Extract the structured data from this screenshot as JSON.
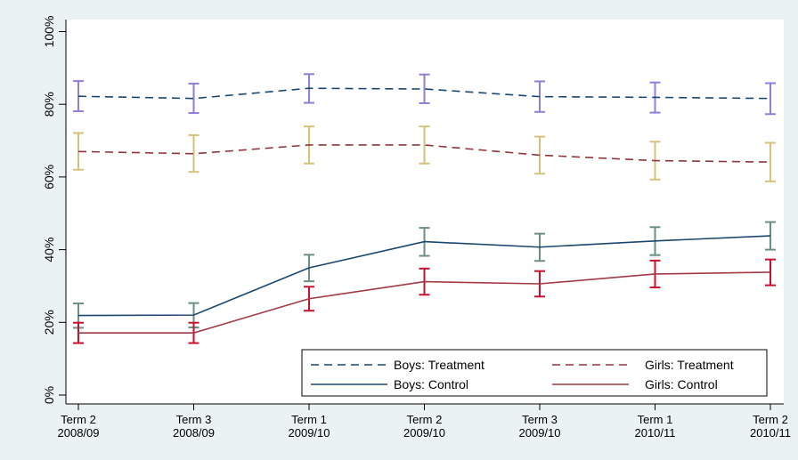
{
  "chart_data": {
    "type": "line",
    "title": "",
    "xlabel": "",
    "ylabel": "",
    "ylim": [
      0,
      100
    ],
    "y_ticks": [
      "0%",
      "20%",
      "40%",
      "60%",
      "80%",
      "100%"
    ],
    "y_tick_values": [
      0,
      20,
      40,
      60,
      80,
      100
    ],
    "categories": [
      [
        "Term 2",
        "2008/09"
      ],
      [
        "Term 3",
        "2008/09"
      ],
      [
        "Term 1",
        "2009/10"
      ],
      [
        "Term 2",
        "2009/10"
      ],
      [
        "Term 3",
        "2009/10"
      ],
      [
        "Term 1",
        "2010/11"
      ],
      [
        "Term 2",
        "2010/11"
      ]
    ],
    "grid": false,
    "legend_position": "bottom-right",
    "series": [
      {
        "name": "Boys: Treatment",
        "style": "dashed",
        "line_color": "#1a476f",
        "error_color": "#8f7fd6",
        "values": [
          82.2,
          81.6,
          84.4,
          84.2,
          82.1,
          81.9,
          81.6
        ],
        "lower": [
          78.1,
          77.6,
          80.4,
          80.3,
          77.9,
          77.7,
          77.3
        ],
        "upper": [
          86.4,
          85.7,
          88.3,
          88.2,
          86.3,
          86.0,
          85.8
        ]
      },
      {
        "name": "Girls: Treatment",
        "style": "dashed",
        "line_color": "#90353b",
        "error_color": "#d4c27a",
        "values": [
          67.0,
          66.4,
          68.8,
          68.8,
          66.0,
          64.5,
          64.1
        ],
        "lower": [
          62.0,
          61.4,
          63.7,
          63.7,
          60.9,
          59.3,
          58.8
        ],
        "upper": [
          72.1,
          71.5,
          73.9,
          73.9,
          71.1,
          69.7,
          69.4
        ]
      },
      {
        "name": "Boys: Control",
        "style": "solid",
        "line_color": "#1a476f",
        "error_color": "#6b8f80",
        "values": [
          21.9,
          22.0,
          35.0,
          42.2,
          40.7,
          42.4,
          43.8
        ],
        "lower": [
          18.5,
          18.6,
          31.3,
          38.3,
          36.9,
          38.5,
          40.0
        ],
        "upper": [
          25.2,
          25.3,
          38.6,
          46.0,
          44.4,
          46.2,
          47.6
        ]
      },
      {
        "name": "Girls: Control",
        "style": "solid",
        "line_color": "#a03a45",
        "error_color": "#c8102e",
        "values": [
          17.1,
          17.1,
          26.5,
          31.2,
          30.6,
          33.3,
          33.8
        ],
        "lower": [
          14.3,
          14.3,
          23.2,
          27.6,
          27.1,
          29.6,
          30.2
        ],
        "upper": [
          19.9,
          19.9,
          29.8,
          34.8,
          34.1,
          37.0,
          37.3
        ]
      }
    ],
    "legend": {
      "entries": [
        {
          "label": "Boys: Treatment",
          "series_index": 0
        },
        {
          "label": "Girls: Treatment",
          "series_index": 1
        },
        {
          "label": "Boys: Control",
          "series_index": 2
        },
        {
          "label": "Girls: Control",
          "series_index": 3
        }
      ]
    }
  }
}
